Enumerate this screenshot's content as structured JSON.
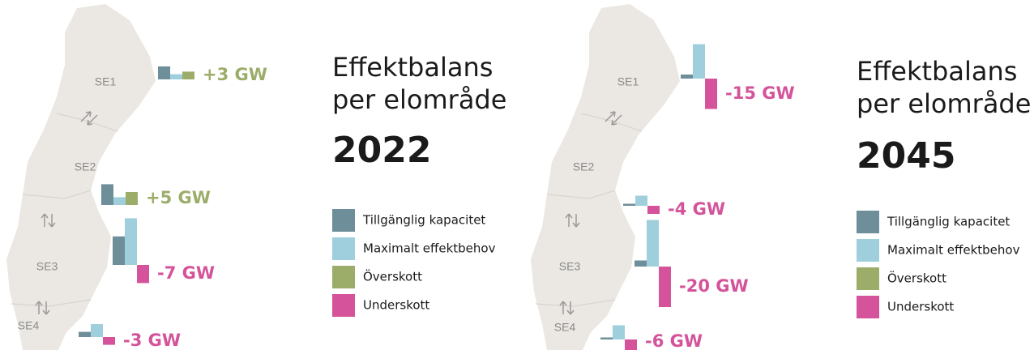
{
  "panels": [
    {
      "title": [
        "Effektbalans",
        "per elområde"
      ],
      "year": "2022",
      "legend": [
        {
          "label": "Tillgänglig kapacitet",
          "color": "#6e8e99"
        },
        {
          "label": "Maximalt effektbehov",
          "color": "#9fcfdc"
        },
        {
          "label": "Överskott",
          "color": "#9cad6a"
        },
        {
          "label": "Underskott",
          "color": "#d4539a"
        }
      ],
      "regions": [
        {
          "name": "SE1",
          "capacity": 5,
          "demand": 2,
          "balance": 3,
          "balance_label": "+3 GW"
        },
        {
          "name": "SE2",
          "capacity": 8,
          "demand": 3,
          "balance": 5,
          "balance_label": "+5 GW"
        },
        {
          "name": "SE3",
          "capacity": 11,
          "demand": 18,
          "balance": -7,
          "balance_label": "-7 GW"
        },
        {
          "name": "SE4",
          "capacity": 2,
          "demand": 5,
          "balance": -3,
          "balance_label": "-3 GW"
        }
      ]
    },
    {
      "title": [
        "Effektbalans",
        "per elområde"
      ],
      "year": "2045",
      "legend": [
        {
          "label": "Tillgänglig kapacitet",
          "color": "#6e8e99"
        },
        {
          "label": "Maximalt effektbehov",
          "color": "#9fcfdc"
        },
        {
          "label": "Överskott",
          "color": "#9cad6a"
        },
        {
          "label": "Underskott",
          "color": "#d4539a"
        }
      ],
      "regions": [
        {
          "name": "SE1",
          "capacity": 2,
          "demand": 17,
          "balance": -15,
          "balance_label": "-15 GW"
        },
        {
          "name": "SE2",
          "capacity": 1,
          "demand": 5,
          "balance": -4,
          "balance_label": "-4 GW"
        },
        {
          "name": "SE3",
          "capacity": 3,
          "demand": 23,
          "balance": -20,
          "balance_label": "-20 GW"
        },
        {
          "name": "SE4",
          "capacity": 1,
          "demand": 7,
          "balance": -6,
          "balance_label": "-6 GW"
        }
      ]
    }
  ]
}
